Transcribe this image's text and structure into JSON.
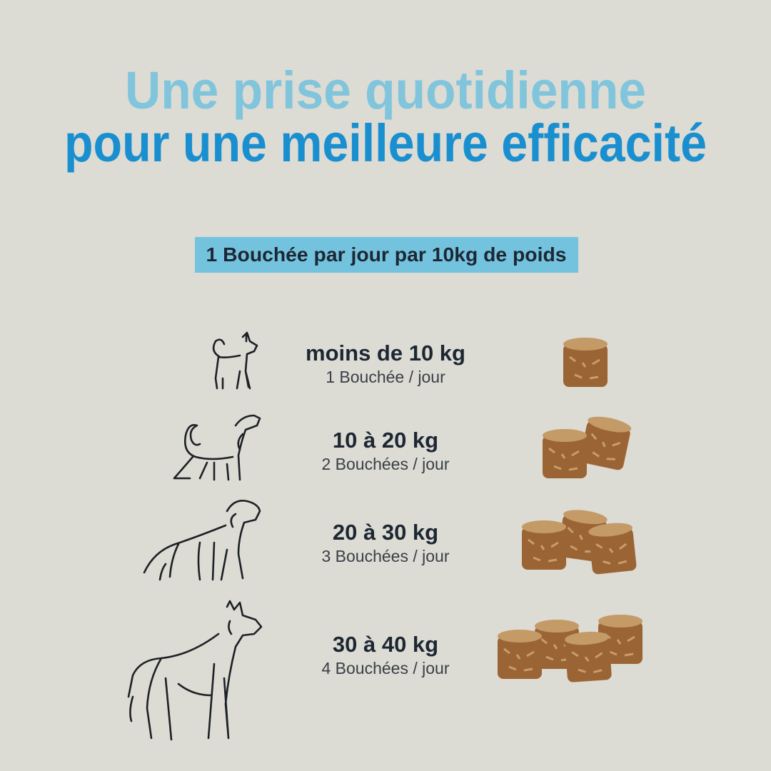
{
  "header": {
    "title_line1": "Une prise quotidienne",
    "title_line2": "pour une meilleure efficacité"
  },
  "banner": "1 Bouchée par jour par 10kg de poids",
  "rows": [
    {
      "weight": "moins de 10 kg",
      "dose": "1 Bouchée / jour"
    },
    {
      "weight": "10 à 20 kg",
      "dose": "2 Bouchées / jour"
    },
    {
      "weight": "20 à 30 kg",
      "dose": "3 Bouchées / jour"
    },
    {
      "weight": "30 à 40 kg",
      "dose": "4 Bouchées / jour"
    }
  ]
}
